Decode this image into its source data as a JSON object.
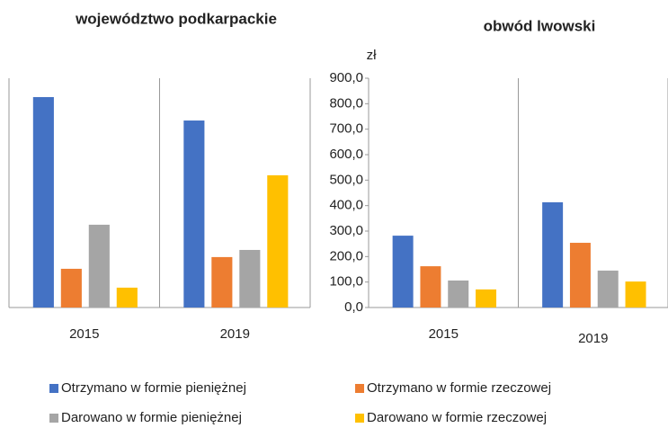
{
  "chart_data": [
    {
      "type": "bar",
      "title": "województwo podkarpackie",
      "categories": [
        "2015",
        "2019"
      ],
      "ylim": [
        0,
        900
      ],
      "series": [
        {
          "name": "Otrzymano w formie pieniężnej",
          "color": "#4472c4",
          "values": [
            826,
            734
          ]
        },
        {
          "name": "Otrzymano w formie rzeczowej",
          "color": "#ed7d31",
          "values": [
            152,
            198
          ]
        },
        {
          "name": "Darowano w formie pieniężnej",
          "color": "#a5a5a5",
          "values": [
            325,
            226
          ]
        },
        {
          "name": "Darowano w formie rzeczowej",
          "color": "#ffc000",
          "values": [
            78,
            519
          ]
        }
      ]
    },
    {
      "type": "bar",
      "title": "obwód lwowski",
      "categories": [
        "2015",
        "2019"
      ],
      "y_axis_label": "zł",
      "ylim": [
        0,
        900
      ],
      "yticks": [
        {
          "value": 0,
          "label": "0,0"
        },
        {
          "value": 100,
          "label": "100,0"
        },
        {
          "value": 200,
          "label": "200,0"
        },
        {
          "value": 300,
          "label": "300,0"
        },
        {
          "value": 400,
          "label": "400,0"
        },
        {
          "value": 500,
          "label": "500,0"
        },
        {
          "value": 600,
          "label": "600,0"
        },
        {
          "value": 700,
          "label": "700,0"
        },
        {
          "value": 800,
          "label": "800,0"
        },
        {
          "value": 900,
          "label": "900,0"
        }
      ],
      "series": [
        {
          "color": "#4472c4",
          "values": [
            282,
            413
          ]
        },
        {
          "color": "#ed7d31",
          "values": [
            162,
            254
          ]
        },
        {
          "color": "#a5a5a5",
          "values": [
            106,
            145
          ]
        },
        {
          "color": "#ffc000",
          "values": [
            71,
            102
          ]
        }
      ]
    }
  ]
}
